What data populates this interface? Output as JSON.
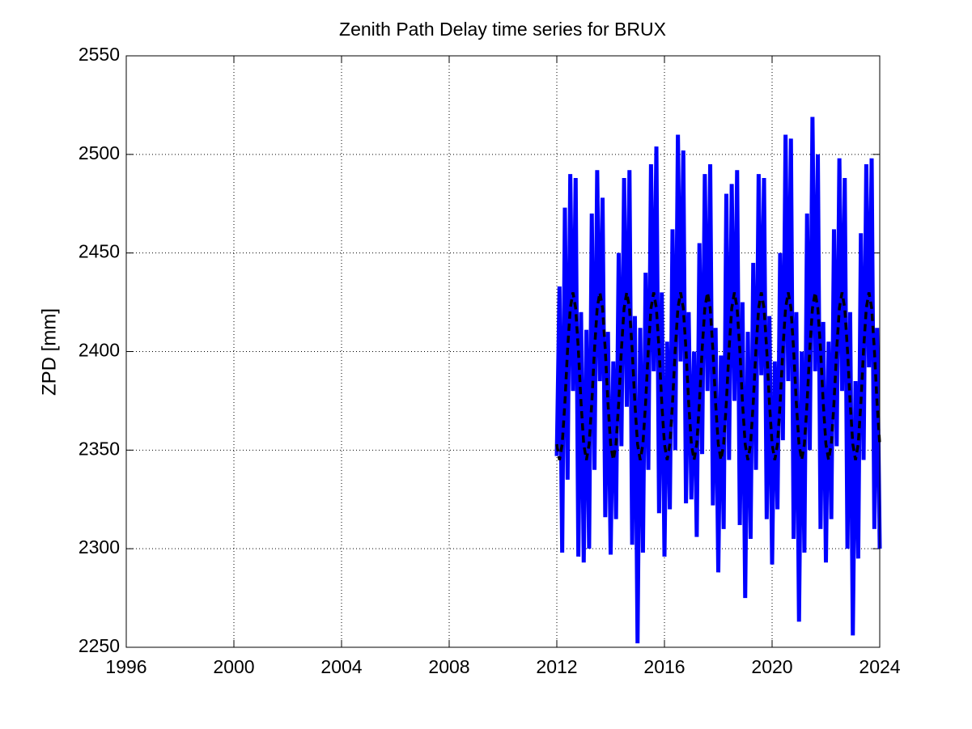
{
  "chart_data": {
    "type": "line",
    "title": "Zenith Path Delay time series for BRUX",
    "y_label": "ZPD [mm]",
    "x": [
      2012,
      2012.1,
      2012.2,
      2012.3,
      2012.4,
      2012.5,
      2012.6,
      2012.7,
      2012.8,
      2012.9,
      2013,
      2013.1,
      2013.2,
      2013.3,
      2013.4,
      2013.5,
      2013.6,
      2013.7,
      2013.8,
      2013.9,
      2014,
      2014.1,
      2014.2,
      2014.3,
      2014.4,
      2014.5,
      2014.6,
      2014.7,
      2014.8,
      2014.9,
      2015,
      2015.1,
      2015.2,
      2015.3,
      2015.4,
      2015.5,
      2015.6,
      2015.7,
      2015.8,
      2015.9,
      2016,
      2016.1,
      2016.2,
      2016.3,
      2016.4,
      2016.5,
      2016.6,
      2016.7,
      2016.8,
      2016.9,
      2017,
      2017.1,
      2017.2,
      2017.3,
      2017.4,
      2017.5,
      2017.6,
      2017.7,
      2017.8,
      2017.9,
      2018,
      2018.1,
      2018.2,
      2018.3,
      2018.4,
      2018.5,
      2018.6,
      2018.7,
      2018.8,
      2018.9,
      2019,
      2019.1,
      2019.2,
      2019.3,
      2019.4,
      2019.5,
      2019.6,
      2019.7,
      2019.8,
      2019.9,
      2020,
      2020.1,
      2020.2,
      2020.3,
      2020.4,
      2020.5,
      2020.6,
      2020.7,
      2020.8,
      2020.9,
      2021,
      2021.1,
      2021.2,
      2021.3,
      2021.4,
      2021.5,
      2021.6,
      2021.7,
      2021.8,
      2021.9,
      2022,
      2022.1,
      2022.2,
      2022.3,
      2022.4,
      2022.5,
      2022.6,
      2022.7,
      2022.8,
      2022.9,
      2023,
      2023.1,
      2023.2,
      2023.3,
      2023.4,
      2023.5,
      2023.6,
      2023.7,
      2023.8,
      2023.9,
      2024
    ],
    "series": [
      {
        "color": "#0000ff",
        "dashed": false,
        "width": 5,
        "values": [
          2347,
          2433,
          2298,
          2473,
          2335,
          2490,
          2380,
          2488,
          2296,
          2420,
          2293,
          2411,
          2300,
          2470,
          2340,
          2492,
          2385,
          2478,
          2316,
          2410,
          2297,
          2395,
          2315,
          2450,
          2352,
          2488,
          2372,
          2492,
          2302,
          2418,
          2252,
          2412,
          2298,
          2440,
          2340,
          2495,
          2390,
          2504,
          2318,
          2430,
          2296,
          2405,
          2320,
          2462,
          2350,
          2510,
          2395,
          2502,
          2323,
          2420,
          2325,
          2400,
          2306,
          2455,
          2348,
          2490,
          2380,
          2495,
          2322,
          2412,
          2288,
          2398,
          2310,
          2480,
          2345,
          2485,
          2375,
          2492,
          2312,
          2425,
          2275,
          2410,
          2305,
          2445,
          2340,
          2490,
          2388,
          2488,
          2315,
          2418,
          2292,
          2395,
          2320,
          2450,
          2355,
          2510,
          2385,
          2508,
          2305,
          2420,
          2263,
          2400,
          2298,
          2470,
          2350,
          2519,
          2390,
          2500,
          2310,
          2415,
          2293,
          2405,
          2315,
          2462,
          2352,
          2498,
          2380,
          2488,
          2300,
          2420,
          2256,
          2385,
          2295,
          2460,
          2345,
          2495,
          2392,
          2498,
          2310,
          2412,
          2300
        ]
      },
      {
        "color": "#000000",
        "dashed": true,
        "width": 3.5,
        "values": [
          2353,
          2345,
          2353,
          2374,
          2401,
          2422,
          2430,
          2422,
          2401,
          2374,
          2353,
          2345,
          2353,
          2374,
          2401,
          2422,
          2430,
          2422,
          2401,
          2374,
          2353,
          2345,
          2353,
          2374,
          2401,
          2422,
          2430,
          2422,
          2401,
          2374,
          2353,
          2345,
          2353,
          2374,
          2401,
          2422,
          2430,
          2422,
          2401,
          2374,
          2353,
          2345,
          2353,
          2374,
          2401,
          2422,
          2430,
          2422,
          2401,
          2374,
          2353,
          2345,
          2353,
          2374,
          2401,
          2422,
          2430,
          2422,
          2401,
          2374,
          2353,
          2345,
          2353,
          2374,
          2401,
          2422,
          2430,
          2422,
          2401,
          2374,
          2353,
          2345,
          2353,
          2374,
          2401,
          2422,
          2430,
          2422,
          2401,
          2374,
          2353,
          2345,
          2353,
          2374,
          2401,
          2422,
          2430,
          2422,
          2401,
          2374,
          2353,
          2345,
          2353,
          2374,
          2401,
          2422,
          2430,
          2422,
          2401,
          2374,
          2353,
          2345,
          2353,
          2374,
          2401,
          2422,
          2430,
          2422,
          2401,
          2374,
          2353,
          2345,
          2353,
          2374,
          2401,
          2422,
          2430,
          2422,
          2401,
          2374,
          2353
        ]
      }
    ],
    "xlim": [
      1996,
      2024
    ],
    "xticks": [
      1996,
      2000,
      2004,
      2008,
      2012,
      2016,
      2020,
      2024
    ],
    "ylim": [
      2250,
      2550
    ],
    "yticks": [
      2250,
      2300,
      2350,
      2400,
      2450,
      2500,
      2550
    ],
    "grid": true
  }
}
